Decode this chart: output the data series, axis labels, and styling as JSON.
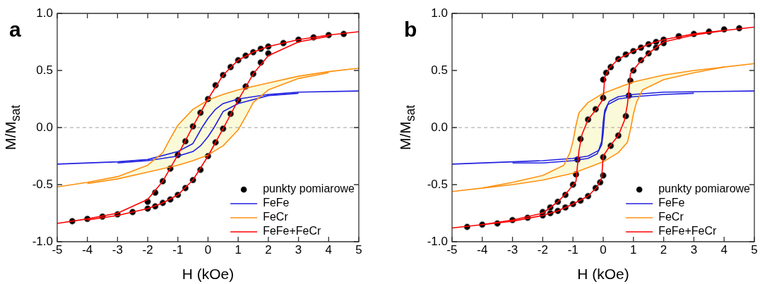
{
  "chart_data": [
    {
      "type": "line",
      "title": "a",
      "xlabel": "H (kOe)",
      "ylabel": "M/M$_{sat}$",
      "xlim": [
        -5,
        5
      ],
      "xticks": [
        -5,
        -4,
        -3,
        -2,
        -1,
        0,
        1,
        2,
        3,
        4,
        5
      ],
      "ylim": [
        -1,
        1
      ],
      "yticks": [
        {
          "value": -1,
          "label": "-1.0"
        },
        {
          "value": -0.5,
          "label": "-0.5"
        },
        {
          "value": 0,
          "label": "0.0"
        },
        {
          "value": 0.5,
          "label": "0.5"
        },
        {
          "value": 1,
          "label": "1.0"
        }
      ],
      "grid": false,
      "legend": "bottom right",
      "ref_lines": [
        {
          "axis": "y",
          "value": 0,
          "color": "#a0a0a0",
          "line_style": "dashed"
        }
      ],
      "series": [
        {
          "name": "punkty pomiarowe",
          "type": "scatter",
          "marker": "circle",
          "color": "#000000",
          "x": [
            -4.5,
            -4,
            -3.5,
            -3,
            -2.5,
            2,
            1.75,
            1.5,
            1.25,
            1,
            0.75,
            0.5,
            0.25,
            0,
            -0.25,
            -0.5,
            -0.75,
            -1,
            -1.25,
            -1.5,
            -1.75,
            -2,
            -2,
            -1.75,
            -1.5,
            -1.25,
            -1,
            -0.75,
            -0.5,
            -0.25,
            0,
            0.25,
            0.5,
            0.75,
            1,
            1.25,
            1.5,
            1.75,
            2,
            2.5,
            3,
            3.5,
            4,
            4.5
          ],
          "values": [
            -0.82,
            -0.8,
            -0.78,
            -0.76,
            -0.74,
            0.71,
            0.69,
            0.66,
            0.63,
            0.59,
            0.53,
            0.46,
            0.37,
            0.25,
            0.13,
            0.01,
            -0.12,
            -0.24,
            -0.36,
            -0.47,
            -0.57,
            -0.65,
            -0.71,
            -0.69,
            -0.66,
            -0.63,
            -0.59,
            -0.53,
            -0.46,
            -0.37,
            -0.25,
            -0.13,
            -0.01,
            0.12,
            0.24,
            0.36,
            0.47,
            0.57,
            0.65,
            0.74,
            0.77,
            0.79,
            0.81,
            0.82
          ]
        },
        {
          "name": "FeFe",
          "type": "line",
          "color": "#2020e0",
          "x": [
            -5,
            -3,
            -2,
            -1,
            -0.5,
            -0.2,
            0,
            0.25,
            0.5,
            1,
            2,
            3,
            5
          ],
          "values": [
            -0.32,
            -0.3,
            -0.28,
            -0.21,
            -0.14,
            0,
            0.08,
            0.16,
            0.21,
            0.25,
            0.29,
            0.31,
            0.32
          ]
        },
        {
          "type": "line",
          "color": "#2020e0",
          "x": [
            -3,
            -2,
            -1,
            -0.5,
            -0.25,
            0,
            0.2,
            0.5,
            1,
            2,
            3
          ],
          "values": [
            -0.31,
            -0.29,
            -0.25,
            -0.21,
            -0.16,
            -0.08,
            0,
            0.14,
            0.21,
            0.28,
            0.3
          ]
        },
        {
          "name": "FeCr",
          "type": "line",
          "color": "#ff9010",
          "x": [
            -5,
            -4,
            -3,
            -2,
            -1.5,
            -1.3,
            -1,
            -0.5,
            0,
            0.5,
            1,
            2,
            3,
            4,
            5
          ],
          "values": [
            -0.52,
            -0.48,
            -0.43,
            -0.33,
            -0.22,
            -0.12,
            0.02,
            0.16,
            0.24,
            0.29,
            0.33,
            0.39,
            0.45,
            0.49,
            0.52
          ]
        },
        {
          "type": "line",
          "color": "#ff9010",
          "x": [
            -4,
            -3,
            -2,
            -1,
            -0.5,
            0,
            0.5,
            1,
            1.3,
            1.5,
            2,
            3,
            4
          ],
          "values": [
            -0.49,
            -0.45,
            -0.39,
            -0.33,
            -0.29,
            -0.24,
            -0.16,
            -0.02,
            0.12,
            0.22,
            0.33,
            0.43,
            0.48
          ]
        },
        {
          "name": "FeFe+FeCr",
          "type": "line",
          "color": "#ff0000",
          "x": [
            -5,
            -4,
            -3,
            -2,
            -1.5,
            -1,
            -0.5,
            0,
            0.5,
            1,
            1.5,
            2,
            3,
            4,
            5
          ],
          "values": [
            -0.84,
            -0.8,
            -0.75,
            -0.63,
            -0.47,
            -0.24,
            0.01,
            0.25,
            0.46,
            0.59,
            0.66,
            0.71,
            0.77,
            0.81,
            0.84
          ]
        },
        {
          "type": "line",
          "color": "#ff0000",
          "x": [
            -4,
            -3,
            -2,
            -1.5,
            -1,
            -0.5,
            0,
            0.5,
            1,
            1.5,
            2,
            3,
            4
          ],
          "values": [
            -0.81,
            -0.77,
            -0.71,
            -0.66,
            -0.59,
            -0.46,
            -0.25,
            -0.01,
            0.24,
            0.47,
            0.63,
            0.75,
            0.8
          ]
        }
      ]
    },
    {
      "type": "line",
      "title": "b",
      "xlabel": "H (kOe)",
      "ylabel": "M/M$_{sat}$",
      "xlim": [
        -5,
        5
      ],
      "xticks": [
        -5,
        -4,
        -3,
        -2,
        -1,
        0,
        1,
        2,
        3,
        4,
        5
      ],
      "ylim": [
        -1,
        1
      ],
      "yticks": [
        {
          "value": -1,
          "label": "-1.0"
        },
        {
          "value": -0.5,
          "label": "-0.5"
        },
        {
          "value": 0,
          "label": "0.0"
        },
        {
          "value": 0.5,
          "label": "0.5"
        },
        {
          "value": 1,
          "label": "1.0"
        }
      ],
      "grid": false,
      "legend": "bottom right",
      "ref_lines": [
        {
          "axis": "y",
          "value": 0,
          "color": "#a0a0a0",
          "line_style": "dashed"
        }
      ],
      "series": [
        {
          "name": "punkty pomiarowe",
          "type": "scatter",
          "marker": "circle",
          "color": "#000000",
          "x": [
            -4.5,
            -4,
            -3.5,
            -3,
            -2.5,
            2,
            1.75,
            1.5,
            1.25,
            1,
            0.75,
            0.5,
            0.25,
            0.1,
            0,
            0,
            -0.25,
            -0.5,
            -0.75,
            -0.85,
            -0.9,
            -1,
            -1.25,
            -1.5,
            -1.75,
            -2,
            -2,
            -1.75,
            -1.5,
            -1.25,
            -1,
            -0.75,
            -0.5,
            -0.25,
            -0.1,
            0,
            0,
            0.25,
            0.5,
            0.75,
            0.85,
            0.9,
            1,
            1.25,
            1.5,
            1.75,
            2,
            2.5,
            3,
            3.5,
            4,
            4.5
          ],
          "values": [
            -0.87,
            -0.85,
            -0.84,
            -0.81,
            -0.79,
            0.77,
            0.75,
            0.73,
            0.7,
            0.67,
            0.64,
            0.6,
            0.53,
            0.48,
            0.42,
            0.26,
            0.16,
            0.07,
            -0.1,
            -0.28,
            -0.41,
            -0.5,
            -0.59,
            -0.65,
            -0.7,
            -0.74,
            -0.77,
            -0.75,
            -0.73,
            -0.7,
            -0.67,
            -0.64,
            -0.6,
            -0.53,
            -0.48,
            -0.42,
            -0.26,
            -0.16,
            -0.07,
            0.1,
            0.28,
            0.41,
            0.5,
            0.59,
            0.65,
            0.7,
            0.74,
            0.8,
            0.82,
            0.84,
            0.86,
            0.87
          ]
        },
        {
          "name": "FeFe",
          "type": "line",
          "color": "#2020e0",
          "x": [
            -5,
            -3,
            -2,
            -1,
            -0.5,
            -0.15,
            -0.05,
            0,
            0.05,
            0.2,
            0.5,
            1,
            2,
            5
          ],
          "values": [
            -0.32,
            -0.3,
            -0.29,
            -0.27,
            -0.25,
            -0.2,
            -0.12,
            0.05,
            0.15,
            0.23,
            0.27,
            0.29,
            0.31,
            0.32
          ]
        },
        {
          "type": "line",
          "color": "#2020e0",
          "x": [
            -3,
            -2,
            -1,
            -0.5,
            -0.2,
            -0.05,
            0,
            0.05,
            0.15,
            0.5,
            1,
            2,
            3
          ],
          "values": [
            -0.31,
            -0.31,
            -0.29,
            -0.27,
            -0.23,
            -0.15,
            -0.05,
            0.12,
            0.2,
            0.25,
            0.27,
            0.29,
            0.3
          ]
        },
        {
          "name": "FeCr",
          "type": "line",
          "color": "#ff9010",
          "x": [
            -5,
            -4,
            -3,
            -2,
            -1.3,
            -1.1,
            -1,
            -0.9,
            -0.8,
            -0.5,
            0,
            0.5,
            1,
            2,
            3,
            4,
            5
          ],
          "values": [
            -0.56,
            -0.53,
            -0.48,
            -0.42,
            -0.33,
            -0.22,
            -0.12,
            0.02,
            0.13,
            0.22,
            0.3,
            0.35,
            0.4,
            0.46,
            0.5,
            0.53,
            0.56
          ]
        },
        {
          "type": "line",
          "color": "#ff9010",
          "x": [
            -4,
            -3,
            -2,
            -1,
            -0.5,
            0,
            0.5,
            0.8,
            0.9,
            1,
            1.1,
            1.3,
            2,
            3,
            4
          ],
          "values": [
            -0.53,
            -0.5,
            -0.46,
            -0.4,
            -0.35,
            -0.3,
            -0.22,
            -0.13,
            -0.02,
            0.12,
            0.22,
            0.33,
            0.42,
            0.48,
            0.53
          ]
        },
        {
          "name": "FeFe+FeCr",
          "type": "line",
          "color": "#ff0000",
          "x": [
            -5,
            -4,
            -3,
            -2,
            -1.5,
            -1.2,
            -0.9,
            -0.85,
            -0.8,
            -0.7,
            -0.5,
            -0.2,
            0,
            0.05,
            0.2,
            0.5,
            1,
            1.5,
            2,
            3,
            4,
            5
          ],
          "values": [
            -0.88,
            -0.85,
            -0.81,
            -0.75,
            -0.65,
            -0.57,
            -0.47,
            -0.33,
            -0.2,
            -0.06,
            0.07,
            0.17,
            0.25,
            0.44,
            0.52,
            0.6,
            0.67,
            0.73,
            0.77,
            0.82,
            0.85,
            0.88
          ]
        },
        {
          "type": "line",
          "color": "#ff0000",
          "x": [
            -4,
            -3,
            -2,
            -1.5,
            -1,
            -0.5,
            -0.2,
            -0.05,
            0,
            0.2,
            0.5,
            0.7,
            0.8,
            0.85,
            0.9,
            1.2,
            1.5,
            2,
            3,
            4
          ],
          "values": [
            -0.85,
            -0.82,
            -0.77,
            -0.73,
            -0.67,
            -0.6,
            -0.52,
            -0.44,
            -0.25,
            -0.17,
            -0.07,
            0.06,
            0.2,
            0.33,
            0.47,
            0.57,
            0.65,
            0.75,
            0.81,
            0.85
          ]
        }
      ]
    }
  ]
}
